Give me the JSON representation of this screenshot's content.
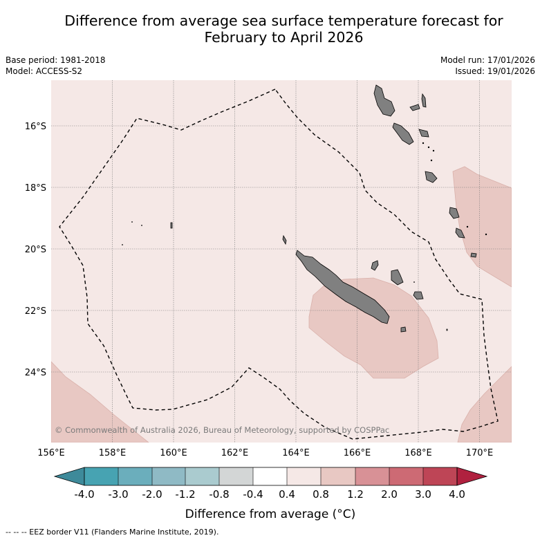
{
  "title_line1": "Difference from average sea surface temperature forecast for",
  "title_line2": "February to April 2026",
  "meta_left": {
    "base_period": "Base period: 1981-2018",
    "model": "Model: ACCESS-S2"
  },
  "meta_right": {
    "model_run": "Model run: 17/01/2026",
    "issued": "Issued: 19/01/2026"
  },
  "map": {
    "lat_labels": [
      "16°S",
      "18°S",
      "20°S",
      "22°S",
      "24°S"
    ],
    "lon_labels": [
      "156°E",
      "158°E",
      "160°E",
      "162°E",
      "164°E",
      "166°E",
      "168°E",
      "170°E"
    ],
    "copyright": "© Commonwealth of Australia 2026, Bureau of Meteorology, supported by COSPPac",
    "colors": {
      "ocean": "#f5e8e6",
      "warm_anomaly": "#e8c8c3",
      "land": "#808080"
    }
  },
  "colorbar": {
    "labels": [
      "-4.0",
      "-3.0",
      "-2.0",
      "-1.2",
      "-0.8",
      "-0.4",
      "0.4",
      "0.8",
      "1.2",
      "2.0",
      "3.0",
      "4.0"
    ],
    "colors": [
      "#3e8a9a",
      "#47a3b2",
      "#6baebc",
      "#8fbac5",
      "#aacbcf",
      "#d3d6d6",
      "#ffffff",
      "#f5e8e6",
      "#e8c8c3",
      "#d89196",
      "#cd6a74",
      "#be4556",
      "#b0213f"
    ],
    "axis_label": "Difference from average (°C)"
  },
  "footnote": "-- -- -- EEZ border V11 (Flanders Marine Institute, 2019)."
}
